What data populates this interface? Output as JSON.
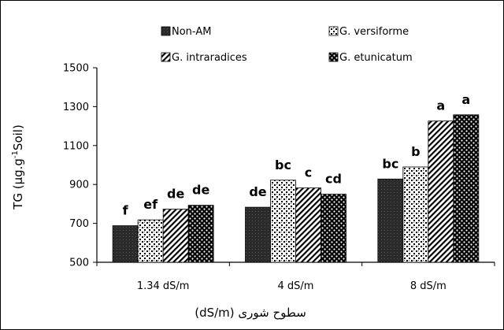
{
  "chart_data": {
    "type": "bar",
    "title": "",
    "xlabel": "(dS/m) سطوح شوری",
    "ylabel_main": "TG (µg.g",
    "ylabel_sup": "-1",
    "ylabel_tail": "Soil)",
    "ylim": [
      500,
      1500
    ],
    "yticks": [
      500,
      700,
      900,
      1100,
      1300,
      1500
    ],
    "grid": false,
    "legend_position": "top",
    "categories": [
      "1.34 dS/m",
      "4 dS/m",
      "8 dS/m"
    ],
    "series": [
      {
        "name": "Non-AM",
        "pattern": "solid-dark",
        "values": [
          688,
          783,
          928
        ],
        "labels": [
          "f",
          "de",
          "bc"
        ]
      },
      {
        "name": "G. versiforme",
        "pattern": "dots",
        "values": [
          718,
          922,
          990
        ],
        "labels": [
          "ef",
          "bc",
          "b"
        ]
      },
      {
        "name": "G. intraradices",
        "pattern": "diagonal",
        "values": [
          773,
          882,
          1226
        ],
        "labels": [
          "de",
          "c",
          "a"
        ]
      },
      {
        "name": "G. etunicatum",
        "pattern": "checker",
        "values": [
          793,
          850,
          1258
        ],
        "labels": [
          "de",
          "cd",
          "a"
        ]
      }
    ]
  }
}
